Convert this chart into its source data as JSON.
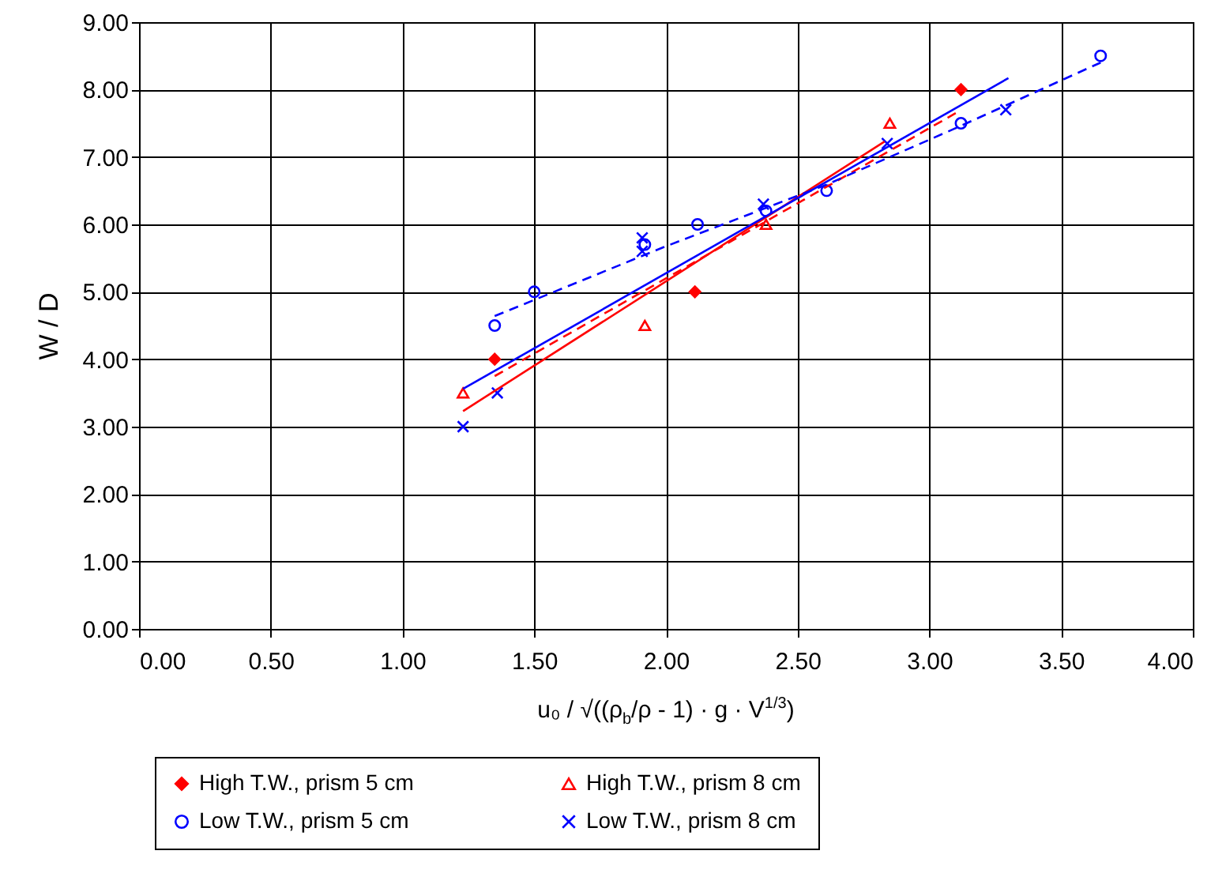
{
  "chart_data": {
    "type": "scatter",
    "xlabel": "u₀ / √((ρ$_{b}$/ρ - 1) · g · V$^{1/3}$)",
    "ylabel": "W / D",
    "xlim": [
      0,
      4
    ],
    "ylim": [
      0,
      9
    ],
    "xticks": [
      {
        "value": 0,
        "label": "0.00"
      },
      {
        "value": 0.5,
        "label": "0.50"
      },
      {
        "value": 1,
        "label": "1.00"
      },
      {
        "value": 1.5,
        "label": "1.50"
      },
      {
        "value": 2,
        "label": "2.00"
      },
      {
        "value": 2.5,
        "label": "2.50"
      },
      {
        "value": 3,
        "label": "3.00"
      },
      {
        "value": 3.5,
        "label": "3.50"
      },
      {
        "value": 4,
        "label": "4.00"
      }
    ],
    "yticks": [
      {
        "value": 0,
        "label": "0.00"
      },
      {
        "value": 1,
        "label": "1.00"
      },
      {
        "value": 2,
        "label": "2.00"
      },
      {
        "value": 3,
        "label": "3.00"
      },
      {
        "value": 4,
        "label": "4.00"
      },
      {
        "value": 5,
        "label": "5.00"
      },
      {
        "value": 6,
        "label": "6.00"
      },
      {
        "value": 7,
        "label": "7.00"
      },
      {
        "value": 8,
        "label": "8.00"
      },
      {
        "value": 9,
        "label": "9.00"
      }
    ],
    "grid": true,
    "legend": "bottom",
    "series": [
      {
        "name": "High T.W., prism 5 cm",
        "marker": "diamond",
        "color": "#ff0000",
        "x": [
          1.35,
          2.11,
          3.12
        ],
        "values": [
          4.0,
          5.0,
          8.0
        ]
      },
      {
        "name": "High T.W., prism 8 cm",
        "marker": "triangle",
        "color": "#ff0000",
        "x": [
          1.23,
          1.92,
          2.38,
          2.85
        ],
        "values": [
          3.5,
          4.5,
          6.0,
          7.5
        ]
      },
      {
        "name": "Low T.W., prism 5 cm",
        "marker": "circle",
        "color": "#0000ff",
        "x": [
          1.35,
          1.5,
          1.92,
          2.12,
          2.38,
          2.61,
          3.12,
          3.65
        ],
        "values": [
          4.5,
          5.0,
          5.7,
          6.0,
          6.2,
          6.5,
          7.5,
          8.5
        ]
      },
      {
        "name": "Low T.W., prism 8 cm",
        "marker": "cross",
        "color": "#0000ff",
        "x": [
          1.23,
          1.36,
          1.91,
          1.91,
          2.37,
          2.84,
          3.29
        ],
        "values": [
          3.0,
          3.5,
          5.8,
          5.6,
          6.3,
          7.2,
          7.7
        ]
      },
      {
        "type": "line",
        "line_style": "dashed",
        "color": "#ff0000",
        "x": [
          1.35,
          3.1
        ],
        "values": [
          3.75,
          7.65
        ]
      },
      {
        "type": "line",
        "line_style": "solid",
        "color": "#ff0000",
        "x": [
          1.23,
          2.83
        ],
        "values": [
          3.23,
          7.23
        ]
      },
      {
        "type": "line",
        "line_style": "dashed",
        "color": "#0000ff",
        "x": [
          1.35,
          1.99,
          2.61,
          3.09,
          3.65
        ],
        "values": [
          4.64,
          5.66,
          6.59,
          7.41,
          8.4
        ]
      },
      {
        "type": "line",
        "line_style": "solid",
        "color": "#0000ff",
        "x": [
          1.23,
          3.3
        ],
        "values": [
          3.56,
          8.17
        ]
      }
    ]
  }
}
